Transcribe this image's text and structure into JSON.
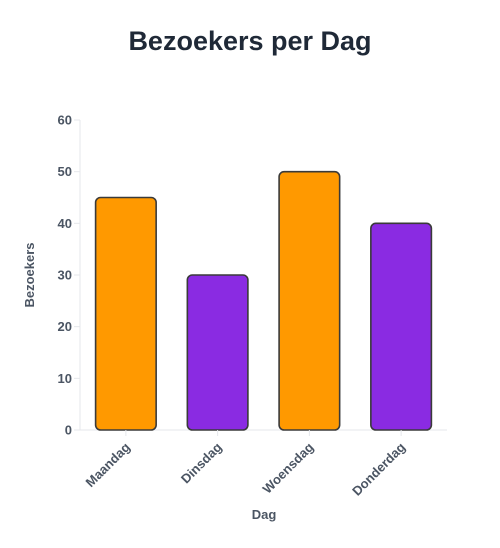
{
  "chart_data": {
    "type": "bar",
    "title": "Bezoekers per Dag",
    "xlabel": "Dag",
    "ylabel": "Bezoekers",
    "categories": [
      "Maandag",
      "Dinsdag",
      "Woensdag",
      "Donderdag"
    ],
    "values": [
      45,
      30,
      50,
      40
    ],
    "colors": [
      "#FF9900",
      "#8A2BE2",
      "#FF9900",
      "#8A2BE2"
    ],
    "bar_stroke": "#3a3a3a",
    "ylim": [
      0,
      60
    ],
    "yticks": [
      0,
      10,
      20,
      30,
      40,
      50,
      60
    ],
    "grid": false,
    "legend": "none"
  }
}
